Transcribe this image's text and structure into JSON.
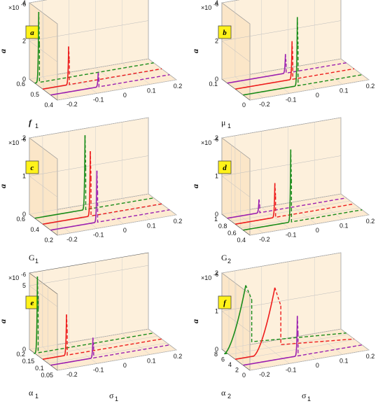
{
  "chart_data": [
    {
      "panel": "a",
      "type": "line",
      "view": "3d-waterfall",
      "zlabel": "a",
      "xlabel": "σ",
      "xlabel_sub": "1",
      "ylabel": "f",
      "ylabel_sub": "1",
      "ylabel_italic": true,
      "multiplier": "×10",
      "multiplier_exp": "-6",
      "xlim": [
        -0.25,
        0.2
      ],
      "zlim": [
        0,
        4
      ],
      "xticks": [
        "-0.2",
        "-0.1",
        "0",
        "0.1",
        "0.2"
      ],
      "zticks": [
        "0",
        "2",
        "4"
      ],
      "depth_ticks": [
        "0.6",
        "0.5",
        "0.4"
      ],
      "series": [
        {
          "depth": 0.6,
          "color": "#1a8c1a",
          "peak_x": -0.235,
          "peak_y": 3.7,
          "stable_back_x": -0.237,
          "unstable_back_y": 2.0
        },
        {
          "depth": 0.5,
          "color": "#ee1c1c",
          "peak_x": -0.152,
          "peak_y": 2.0,
          "stable_back_x": -0.154,
          "unstable_back_y": 1.3
        },
        {
          "depth": 0.4,
          "color": "#9b1fb0",
          "peak_x": -0.07,
          "peak_y": 0.75,
          "stable_back_x": -0.072,
          "unstable_back_y": 0.45
        }
      ]
    },
    {
      "panel": "b",
      "type": "line",
      "view": "3d-waterfall",
      "zlabel": "a",
      "xlabel": "σ",
      "xlabel_sub": "1",
      "ylabel": "μ",
      "ylabel_sub": "1",
      "ylabel_italic": false,
      "multiplier": "×10",
      "multiplier_exp": "-6",
      "xlim": [
        -0.25,
        0.2
      ],
      "zlim": [
        0,
        4
      ],
      "xticks": [
        "-0.2",
        "-0.1",
        "0",
        "0.1",
        "0.2"
      ],
      "zticks": [
        "0",
        "2",
        "4"
      ],
      "depth_ticks": [
        "0.1",
        "0"
      ],
      "series": [
        {
          "depth": 0.1,
          "color": "#9b1fb0",
          "peak_x": -0.03,
          "peak_y": 1.0,
          "stable_back_x": -0.032,
          "unstable_back_y": 0.5
        },
        {
          "depth": 0.05,
          "color": "#ee1c1c",
          "peak_x": -0.035,
          "peak_y": 2.0,
          "stable_back_x": -0.037,
          "unstable_back_y": 1.2
        },
        {
          "depth": 0.0,
          "color": "#1a8c1a",
          "peak_x": -0.045,
          "peak_y": 3.6,
          "stable_back_x": -0.047,
          "unstable_back_y": 2.1
        }
      ]
    },
    {
      "panel": "c",
      "type": "line",
      "view": "3d-waterfall",
      "zlabel": "a",
      "xlabel": "σ",
      "xlabel_sub": "1",
      "ylabel": "G",
      "ylabel_sub": "1",
      "ylabel_italic": false,
      "multiplier": "×10",
      "multiplier_exp": "-6",
      "xlim": [
        -0.25,
        0.2
      ],
      "zlim": [
        0,
        2
      ],
      "xticks": [
        "-0.2",
        "-0.1",
        "0",
        "0.1",
        "0.2"
      ],
      "zticks": [
        "0",
        "1",
        "2"
      ],
      "depth_ticks": [
        "0.6",
        "0.4",
        "0.2"
      ],
      "series": [
        {
          "depth": 0.6,
          "color": "#1a8c1a",
          "peak_x": -0.06,
          "peak_y": 1.95,
          "stable_back_x": -0.062,
          "unstable_back_y": 1.1
        },
        {
          "depth": 0.4,
          "color": "#ee1c1c",
          "peak_x": -0.07,
          "peak_y": 1.7,
          "stable_back_x": -0.072,
          "unstable_back_y": 1.0
        },
        {
          "depth": 0.2,
          "color": "#9b1fb0",
          "peak_x": -0.075,
          "peak_y": 1.35,
          "stable_back_x": -0.077,
          "unstable_back_y": 0.8
        }
      ]
    },
    {
      "panel": "d",
      "type": "line",
      "view": "3d-waterfall",
      "zlabel": "a",
      "xlabel": "σ",
      "xlabel_sub": "1",
      "ylabel": "G",
      "ylabel_sub": "2",
      "ylabel_italic": false,
      "multiplier": "×10",
      "multiplier_exp": "-6",
      "xlim": [
        -0.25,
        0.2
      ],
      "zlim": [
        0,
        2
      ],
      "xticks": [
        "-0.2",
        "-0.1",
        "0",
        "0.1",
        "0.2"
      ],
      "zticks": [
        "0",
        "1",
        "2"
      ],
      "depth_ticks": [
        "1",
        "0.8",
        "0.6",
        "0.4"
      ],
      "series": [
        {
          "depth": 1.0,
          "color": "#9b1fb0",
          "peak_x": -0.13,
          "peak_y": 0.35,
          "stable_back_x": -0.132,
          "unstable_back_y": 0.2
        },
        {
          "depth": 0.7,
          "color": "#ee1c1c",
          "peak_x": -0.1,
          "peak_y": 0.9,
          "stable_back_x": -0.102,
          "unstable_back_y": 0.55
        },
        {
          "depth": 0.4,
          "color": "#1a8c1a",
          "peak_x": -0.07,
          "peak_y": 1.9,
          "stable_back_x": -0.072,
          "unstable_back_y": 1.1
        }
      ]
    },
    {
      "panel": "e",
      "type": "line",
      "view": "3d-waterfall",
      "zlabel": "a",
      "xlabel": "σ",
      "xlabel_sub": "1",
      "ylabel": "α",
      "ylabel_sub": "1",
      "ylabel_italic": false,
      "multiplier": "×10",
      "multiplier_exp": "-6",
      "xlim": [
        -0.25,
        0.2
      ],
      "zlim": [
        0,
        6
      ],
      "xticks": [
        "-0.2",
        "-0.1",
        "0",
        "0.1",
        "0.2"
      ],
      "zticks": [
        "0",
        "5"
      ],
      "depth_ticks": [
        "0.2",
        "0.15",
        "0.1",
        "0.05"
      ],
      "series": [
        {
          "depth": 0.2,
          "color": "#1a8c1a",
          "peak_x": -0.24,
          "peak_y": 6.3,
          "stable_back_x": -0.245,
          "unstable_back_y": 3.5
        },
        {
          "depth": 0.125,
          "color": "#ee1c1c",
          "peak_x": -0.16,
          "peak_y": 3.2,
          "stable_back_x": -0.163,
          "unstable_back_y": 2.0
        },
        {
          "depth": 0.05,
          "color": "#9b1fb0",
          "peak_x": -0.09,
          "peak_y": 1.6,
          "stable_back_x": -0.092,
          "unstable_back_y": 0.9
        }
      ]
    },
    {
      "panel": "f",
      "type": "line",
      "view": "3d-waterfall",
      "zlabel": "a",
      "xlabel": "σ",
      "xlabel_sub": "1",
      "ylabel": "α",
      "ylabel_sub": "2",
      "ylabel_italic": false,
      "multiplier": "×10",
      "multiplier_exp": "-6",
      "xlim": [
        -0.25,
        0.2
      ],
      "zlim": [
        0,
        2
      ],
      "xticks": [
        "-0.2",
        "-0.1",
        "0",
        "0.1",
        "0.2"
      ],
      "zticks": [
        "0",
        "1",
        "2"
      ],
      "depth_ticks": [
        "8",
        "6",
        "4",
        "2",
        "0"
      ],
      "series": [
        {
          "depth": 8,
          "color": "#1a8c1a",
          "peak_x": -0.18,
          "peak_y": 1.7,
          "stable_back_x": -0.21,
          "unstable_back_y": 1.3,
          "broad": true
        },
        {
          "depth": 5,
          "color": "#ee1c1c",
          "peak_x": -0.1,
          "peak_y": 1.7,
          "stable_back_x": -0.13,
          "unstable_back_y": 1.2,
          "broad": true
        },
        {
          "depth": 1,
          "color": "#9b1fb0",
          "peak_x": -0.045,
          "peak_y": 1.05,
          "stable_back_x": -0.048,
          "unstable_back_y": 0.6
        }
      ]
    }
  ]
}
